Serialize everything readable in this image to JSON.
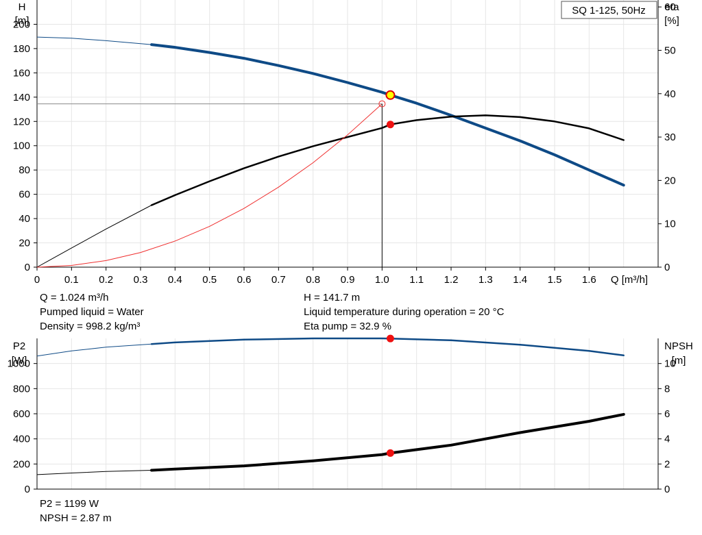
{
  "chart_data": [
    {
      "type": "line",
      "title": "SQ 1-125, 50Hz",
      "xlabel": "Q [m³/h]",
      "xlim": [
        0,
        1.8
      ],
      "x_ticks": [
        "0",
        "0.1",
        "0.2",
        "0.3",
        "0.4",
        "0.5",
        "0.6",
        "0.7",
        "0.8",
        "0.9",
        "1.0",
        "1.1",
        "1.2",
        "1.3",
        "1.4",
        "1.5",
        "1.6"
      ],
      "left_axis": {
        "label_line1": "H",
        "label_line2": "[m]",
        "ylim": [
          0,
          220
        ],
        "ticks": [
          "0",
          "20",
          "40",
          "60",
          "80",
          "100",
          "120",
          "140",
          "160",
          "180",
          "200"
        ]
      },
      "right_axis": {
        "label_line1": "eta",
        "label_line2": "[%]",
        "ylim": [
          0,
          61.6
        ],
        "ticks": [
          "0",
          "10",
          "20",
          "30",
          "40",
          "50",
          "60"
        ]
      },
      "grid": true,
      "series": [
        {
          "name": "H",
          "axis": "left",
          "color": "#0e4a86",
          "x": [
            0,
            0.1,
            0.2,
            0.332,
            0.4,
            0.5,
            0.6,
            0.7,
            0.8,
            0.9,
            1.0,
            1.024,
            1.1,
            1.2,
            1.3,
            1.4,
            1.5,
            1.6,
            1.7
          ],
          "y": [
            189.5,
            188.5,
            186.5,
            183.3,
            181.0,
            176.8,
            172.0,
            166.0,
            159.5,
            152.0,
            144.0,
            141.7,
            135.0,
            125.0,
            114.5,
            104.0,
            92.5,
            80.0,
            67.5
          ]
        },
        {
          "name": "eta",
          "axis": "right",
          "color": "#000000",
          "x": [
            0,
            0.1,
            0.2,
            0.332,
            0.4,
            0.5,
            0.6,
            0.7,
            0.8,
            0.9,
            1.0,
            1.024,
            1.1,
            1.2,
            1.3,
            1.4,
            1.5,
            1.6,
            1.7
          ],
          "y": [
            0,
            4.4,
            8.8,
            14.3,
            16.6,
            19.8,
            22.8,
            25.5,
            27.9,
            30.0,
            32.1,
            32.9,
            33.9,
            34.7,
            35.0,
            34.6,
            33.6,
            32.0,
            29.3
          ]
        },
        {
          "name": "system",
          "axis": "left",
          "color": "#ef2d2d",
          "x": [
            0,
            0.1,
            0.2,
            0.3,
            0.4,
            0.5,
            0.6,
            0.7,
            0.8,
            0.9,
            1.0
          ],
          "y": [
            0,
            1.4,
            5.4,
            12.1,
            21.5,
            33.6,
            48.4,
            65.9,
            86.0,
            108.9,
            134.5
          ]
        }
      ],
      "operating_point": {
        "x": 1.024,
        "y_H": 141.7,
        "y_eta": 32.9,
        "y_sys": 134.5,
        "x_sys": 1.0
      }
    },
    {
      "type": "line",
      "xlim": [
        0,
        1.8
      ],
      "left_axis": {
        "label_line1": "P2",
        "label_line2": "[W]",
        "ylim": [
          0,
          1200
        ],
        "ticks": [
          "0",
          "200",
          "400",
          "600",
          "800",
          "1000"
        ]
      },
      "right_axis": {
        "label_line1": "NPSH",
        "label_line2": "[m]",
        "ylim": [
          0,
          12
        ],
        "ticks": [
          "0",
          "2",
          "4",
          "6",
          "8",
          "10"
        ]
      },
      "grid": true,
      "series": [
        {
          "name": "P2",
          "axis": "left",
          "color": "#0e4a86",
          "x": [
            0,
            0.1,
            0.2,
            0.332,
            0.4,
            0.6,
            0.8,
            1.0,
            1.024,
            1.2,
            1.4,
            1.6,
            1.7
          ],
          "y": [
            1060,
            1100,
            1130,
            1155,
            1168,
            1190,
            1200,
            1200,
            1199,
            1185,
            1150,
            1100,
            1065
          ]
        },
        {
          "name": "NPSH",
          "axis": "right",
          "color": "#000000",
          "x": [
            0,
            0.1,
            0.2,
            0.332,
            0.4,
            0.6,
            0.8,
            1.0,
            1.024,
            1.2,
            1.4,
            1.6,
            1.7
          ],
          "y": [
            1.15,
            1.28,
            1.4,
            1.5,
            1.6,
            1.85,
            2.25,
            2.75,
            2.87,
            3.5,
            4.5,
            5.4,
            5.95
          ]
        }
      ],
      "operating_point": {
        "x": 1.024,
        "y_P2": 1199,
        "y_NPSH": 2.87
      }
    }
  ],
  "info_top": {
    "q": "Q = 1.024 m³/h",
    "liquid": "Pumped liquid = Water",
    "density": "Density = 998.2 kg/m³",
    "h": "H = 141.7 m",
    "temperature": "Liquid temperature during operation = 20 °C",
    "eta": "Eta pump = 32.9 %"
  },
  "info_bottom": {
    "p2": "P2 = 1199 W",
    "npsh": "NPSH = 2.87 m"
  }
}
